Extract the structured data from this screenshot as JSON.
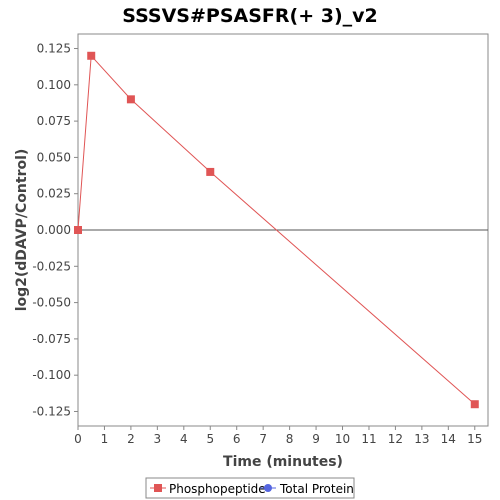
{
  "chart_data": {
    "type": "line",
    "title": "SSSVS#PSASFR(+ 3)_v2",
    "xlabel": "Time (minutes)",
    "ylabel": "log2(dDAVP/Control)",
    "xlim": [
      0,
      15.5
    ],
    "ylim": [
      -0.135,
      0.135
    ],
    "xticks": [
      "0",
      "1",
      "2",
      "3",
      "4",
      "5",
      "6",
      "7",
      "8",
      "9",
      "10",
      "11",
      "12",
      "13",
      "14",
      "15"
    ],
    "yticks": [
      "0.125",
      "0.100",
      "0.075",
      "0.050",
      "0.025",
      "0.000",
      "-0.025",
      "-0.050",
      "-0.075",
      "-0.100",
      "-0.125"
    ],
    "grid": false,
    "zero_line": true,
    "legend_position": "bottom",
    "legend": [
      "Phosphopeptide",
      "Total Protein"
    ],
    "series": [
      {
        "name": "Phosphopeptide",
        "color": "#e05555",
        "marker": "square",
        "x": [
          0,
          0.5,
          2,
          5,
          15
        ],
        "y": [
          0.0,
          0.12,
          0.09,
          0.04,
          -0.12
        ]
      },
      {
        "name": "Total Protein",
        "color": "#5566e0",
        "marker": "circle",
        "x": [],
        "y": []
      }
    ]
  }
}
